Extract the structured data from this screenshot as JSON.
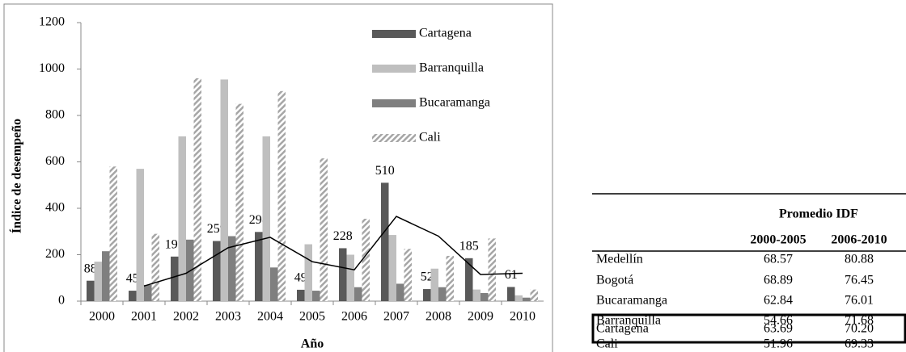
{
  "chart_data": {
    "type": "bar",
    "x_label": "Año",
    "y_label": "Índice de desempeño",
    "categories": [
      "2000",
      "2001",
      "2002",
      "2003",
      "2004",
      "2005",
      "2006",
      "2007",
      "2008",
      "2009",
      "2010"
    ],
    "series": [
      {
        "name": "Cartagena",
        "color": "#595959",
        "values": [
          88,
          45,
          192,
          259,
          298,
          49,
          228,
          510,
          52,
          185,
          61
        ],
        "data_labels": true
      },
      {
        "name": "Barranquilla",
        "color": "#bfbfbf",
        "values": [
          170,
          570,
          710,
          955,
          710,
          245,
          200,
          285,
          140,
          50,
          25
        ]
      },
      {
        "name": "Bucaramanga",
        "color": "#7f7f7f",
        "values": [
          215,
          70,
          265,
          280,
          145,
          45,
          60,
          75,
          60,
          35,
          15
        ]
      },
      {
        "name": "Cali",
        "color": "#a6a6a6",
        "pattern": "hatch",
        "values": [
          580,
          290,
          960,
          850,
          905,
          615,
          355,
          225,
          195,
          270,
          50
        ]
      },
      {
        "type": "line",
        "color": "#000000",
        "values": [
          null,
          65,
          120,
          230,
          275,
          170,
          135,
          365,
          280,
          115,
          120
        ]
      }
    ],
    "ylim": [
      0,
      1200
    ],
    "yticks": [
      0,
      200,
      400,
      600,
      800,
      1000,
      1200
    ],
    "grid": false,
    "legend": "top-right"
  },
  "table": {
    "header": "Promedio IDF",
    "columns": [
      "2000-2005",
      "2006-2010"
    ],
    "rows": [
      [
        "Medellín",
        "68.57",
        "80.88"
      ],
      [
        "Bogotá",
        "68.89",
        "76.45"
      ],
      [
        "Bucaramanga",
        "62.84",
        "76.01"
      ],
      [
        "Barranquilla",
        "54.66",
        "71.68"
      ],
      [
        "Cartagena",
        "63.69",
        "70.20"
      ],
      [
        "Cali",
        "51.96",
        "69.33"
      ]
    ],
    "highlight_row": 4
  }
}
